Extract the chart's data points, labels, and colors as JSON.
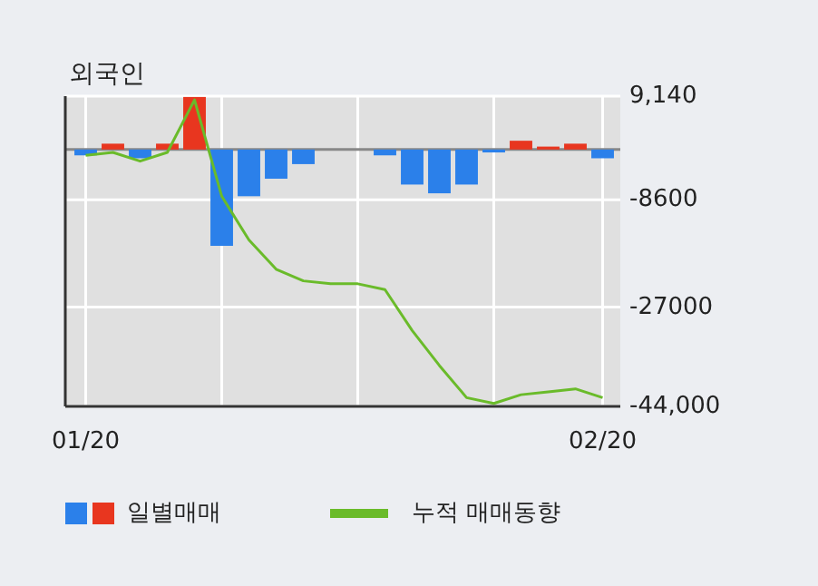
{
  "chart_data": {
    "type": "bar",
    "title": "외국인",
    "categories": [
      "01/20",
      null,
      null,
      null,
      null,
      null,
      null,
      null,
      null,
      null,
      null,
      null,
      null,
      null,
      null,
      null,
      null,
      null,
      null,
      "02/20"
    ],
    "series": [
      {
        "name": "일별매매",
        "colors": [
          "#2b80ea",
          "#e8361f",
          "#2b80ea",
          "#e8361f",
          "#e8361f",
          "#2b80ea",
          "#2b80ea",
          "#2b80ea",
          "#2b80ea",
          "#2b80ea",
          "#2b80ea",
          "#2b80ea",
          "#2b80ea",
          "#2b80ea",
          "#2b80ea",
          "#2b80ea",
          "#e8361f",
          "#e8361f",
          "#e8361f",
          "#2b80ea"
        ],
        "values": [
          -1000,
          1000,
          -1500,
          1000,
          9000,
          -16500,
          -8000,
          -5000,
          -2500,
          null,
          null,
          -1000,
          -6000,
          -7500,
          -6000,
          -500,
          1500,
          500,
          1000,
          -1500
        ]
      },
      {
        "name": "누적 매매동향",
        "type": "line",
        "color": "#6abb2a",
        "values": [
          -1000,
          -500,
          -2000,
          -500,
          8500,
          -8000,
          -15500,
          -20500,
          -22500,
          -23000,
          -23000,
          -24000,
          -31000,
          -37000,
          -42500,
          -43500,
          -42000,
          -41500,
          -41000,
          -42500
        ]
      }
    ],
    "ylim": [
      -44000,
      9140
    ],
    "yticks": [
      {
        "value": 9140,
        "label": "9,140"
      },
      -8600,
      -27000,
      {
        "value": -44000,
        "label": "-44,000"
      }
    ],
    "grid": true,
    "legend": "bottom"
  }
}
